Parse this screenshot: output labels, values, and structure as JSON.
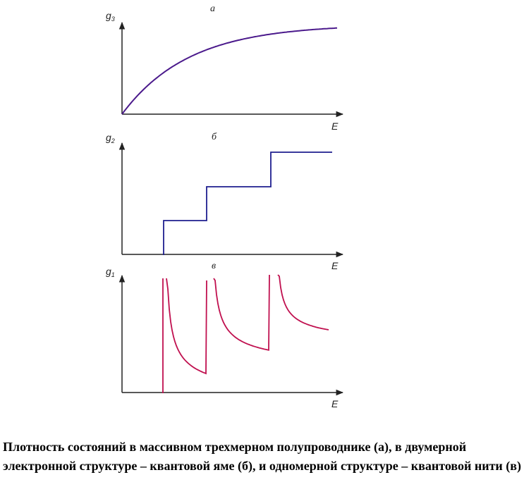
{
  "panels": [
    {
      "tag": "а",
      "y_symbol": "g",
      "y_subscript": "3",
      "x_label": "E",
      "curve": "sqrt-rise",
      "color": "#4b1a8c"
    },
    {
      "tag": "б",
      "y_symbol": "g",
      "y_subscript": "2",
      "x_label": "E",
      "curve": "staircase",
      "color": "#1f1f8f"
    },
    {
      "tag": "в",
      "y_symbol": "g",
      "y_subscript": "1",
      "x_label": "E",
      "curve": "inverse-sqrt-peaks",
      "color": "#c0104f"
    }
  ],
  "caption": "Плотность состояний в массивном трехмерном полупроводнике (а), в двумерной электронной структуре – квантовой яме (б), и одномерной структуре – квантовой нити (в)"
}
